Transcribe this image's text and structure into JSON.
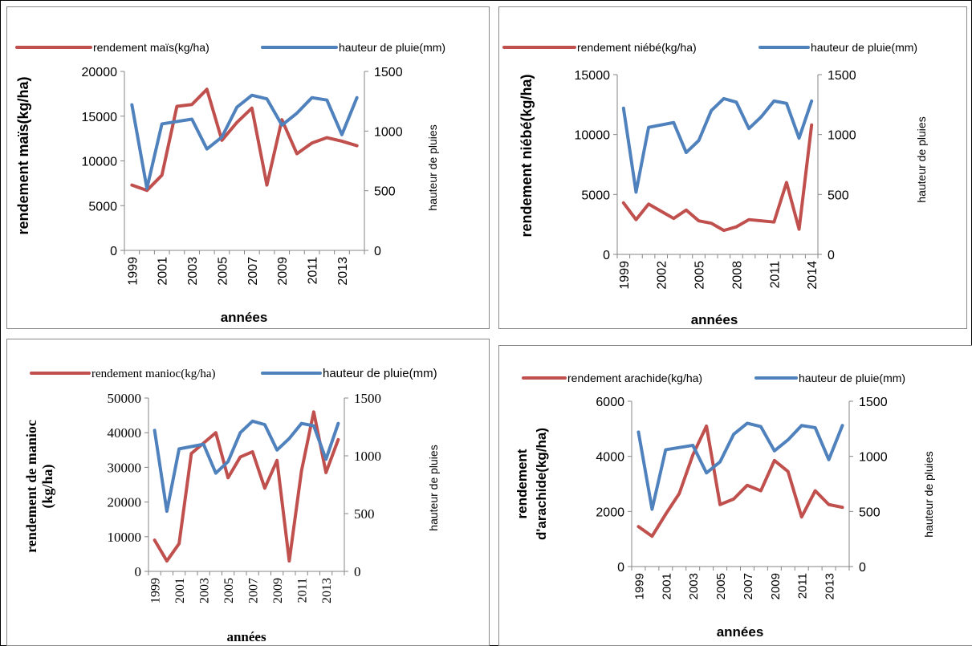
{
  "chart_data": [
    {
      "type": "line",
      "x": [
        "1999",
        "2000",
        "2001",
        "2002",
        "2003",
        "2004",
        "2005",
        "2006",
        "2007",
        "2008",
        "2009",
        "2010",
        "2011",
        "2012",
        "2013",
        "2014"
      ],
      "tick_labels": [
        "1999",
        "2001",
        "2003",
        "2005",
        "2007",
        "2009",
        "2011",
        "2013"
      ],
      "series": [
        {
          "name": "rendement maïs(kg/ha)",
          "axis": "left",
          "color": "#c0504d",
          "values": [
            7300,
            6700,
            8400,
            16100,
            16300,
            18000,
            12300,
            14300,
            15900,
            7300,
            14600,
            10800,
            12000,
            12600,
            12200,
            11700
          ]
        },
        {
          "name": "hauteur de pluie(mm)",
          "axis": "right",
          "color": "#4f81bd",
          "values": [
            1220,
            520,
            1060,
            1080,
            1100,
            850,
            950,
            1200,
            1300,
            1270,
            1050,
            1150,
            1280,
            1260,
            970,
            1280
          ]
        }
      ],
      "ylabel": "rendement maïs(kg/ha)",
      "y2label": "hauteur de pluies",
      "xlabel": "années",
      "ylim": [
        0,
        20000
      ],
      "yticks": [
        0,
        5000,
        10000,
        15000,
        20000
      ],
      "y2lim": [
        0,
        1500
      ],
      "y2ticks": [
        0,
        500,
        1000,
        1500
      ],
      "legend": "top"
    },
    {
      "type": "line",
      "x": [
        "1999",
        "2000",
        "2001",
        "2002",
        "2003",
        "2004",
        "2005",
        "2006",
        "2007",
        "2008",
        "2009",
        "2010",
        "2011",
        "2012",
        "2013",
        "2014"
      ],
      "tick_labels": [
        "1999",
        "2002",
        "2005",
        "2008",
        "2011",
        "2014"
      ],
      "series": [
        {
          "name": "rendement niébé(kg/ha)",
          "axis": "left",
          "color": "#c0504d",
          "values": [
            4300,
            2900,
            4200,
            3600,
            3000,
            3700,
            2800,
            2600,
            2000,
            2300,
            2900,
            2800,
            2700,
            6000,
            2100,
            10800
          ]
        },
        {
          "name": "hauteur de pluie(mm)",
          "axis": "right",
          "color": "#4f81bd",
          "values": [
            1220,
            520,
            1060,
            1080,
            1100,
            850,
            950,
            1200,
            1300,
            1270,
            1050,
            1150,
            1280,
            1260,
            970,
            1280
          ]
        }
      ],
      "ylabel": "rendement niébé(kg/ha)",
      "y2label": "hauteur de pluies",
      "xlabel": "années",
      "ylim": [
        0,
        15000
      ],
      "yticks": [
        0,
        5000,
        10000,
        15000
      ],
      "y2lim": [
        0,
        1500
      ],
      "y2ticks": [
        0,
        500,
        1000,
        1500
      ],
      "legend": "top"
    },
    {
      "type": "line",
      "x": [
        "1999",
        "2000",
        "2001",
        "2002",
        "2003",
        "2004",
        "2005",
        "2006",
        "2007",
        "2008",
        "2009",
        "2010",
        "2011",
        "2012",
        "2013",
        "2014"
      ],
      "tick_labels": [
        "1999",
        "2001",
        "2003",
        "2005",
        "2007",
        "2009",
        "2011",
        "2013"
      ],
      "series": [
        {
          "name": "rendement manioc(kg/ha)",
          "axis": "left",
          "color": "#c0504d",
          "values": [
            9000,
            3000,
            8000,
            34000,
            37000,
            40000,
            27000,
            33000,
            34500,
            24000,
            32000,
            3000,
            29000,
            46000,
            28500,
            38000
          ]
        },
        {
          "name": "hauteur de pluie(mm)",
          "axis": "right",
          "color": "#4f81bd",
          "values": [
            1220,
            520,
            1060,
            1080,
            1100,
            850,
            950,
            1200,
            1300,
            1270,
            1050,
            1150,
            1280,
            1260,
            970,
            1280
          ]
        }
      ],
      "ylabel_lines": [
        "rendement de manioc",
        "(kg/ha)"
      ],
      "y2label": "hauteur de pluies",
      "xlabel": "années",
      "ylim": [
        0,
        50000
      ],
      "yticks": [
        0,
        10000,
        20000,
        30000,
        40000,
        50000
      ],
      "y2lim": [
        0,
        1500
      ],
      "y2ticks": [
        0,
        500,
        1000,
        1500
      ],
      "legend": "top"
    },
    {
      "type": "line",
      "x": [
        "1999",
        "2000",
        "2001",
        "2002",
        "2003",
        "2004",
        "2005",
        "2006",
        "2007",
        "2008",
        "2009",
        "2010",
        "2011",
        "2012",
        "2013",
        "2014"
      ],
      "tick_labels": [
        "1999",
        "2001",
        "2003",
        "2005",
        "2007",
        "2009",
        "2011",
        "2013"
      ],
      "series": [
        {
          "name": "rendement arachide(kg/ha)",
          "axis": "left",
          "color": "#c0504d",
          "values": [
            1450,
            1100,
            1900,
            2650,
            4050,
            5100,
            2250,
            2450,
            2950,
            2750,
            3850,
            3450,
            1800,
            2750,
            2250,
            2150
          ]
        },
        {
          "name": "hauteur de pluie(mm)",
          "axis": "right",
          "color": "#4f81bd",
          "values": [
            1220,
            520,
            1060,
            1080,
            1100,
            850,
            950,
            1200,
            1300,
            1270,
            1050,
            1150,
            1280,
            1260,
            970,
            1280
          ]
        }
      ],
      "ylabel_lines": [
        "rendement",
        "d'arachide(kg/ha)"
      ],
      "y2label": "hauteur de pluies",
      "xlabel": "années",
      "ylim": [
        0,
        6000
      ],
      "yticks": [
        0,
        2000,
        4000,
        6000
      ],
      "y2lim": [
        0,
        1500
      ],
      "y2ticks": [
        0,
        500,
        1000,
        1500
      ],
      "legend": "top"
    }
  ]
}
